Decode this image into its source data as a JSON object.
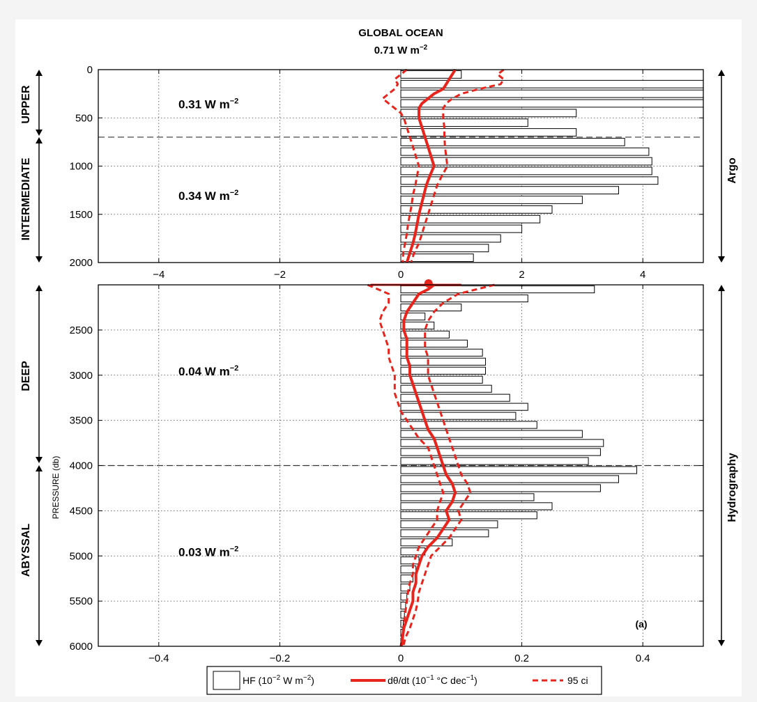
{
  "figure": {
    "title": "GLOBAL OCEAN",
    "subtitle_value": "0.71 W m",
    "subtitle_exp": "−2",
    "panel_label": "(a)",
    "ylabel": "PRESSURE (db)",
    "right_labels": [
      "Argo",
      "Hydrography"
    ],
    "left_labels": [
      "UPPER",
      "INTERMEDIATE",
      "DEEP",
      "ABYSSAL"
    ]
  },
  "legend": {
    "hf_label": "HF (10",
    "hf_exp": "−2",
    "hf_unit": " W m",
    "hf_unit_exp": "−2",
    "hf_close": ")",
    "dt_label": "dθ/dt (10",
    "dt_exp": "−1",
    "dt_unit": " °C dec",
    "dt_unit_exp": "−1",
    "dt_close": ")",
    "ci_label": "95 ci"
  },
  "chart_data": [
    {
      "type": "bar",
      "panel": "top",
      "orientation": "horizontal",
      "xlim": [
        -5,
        5
      ],
      "ylim": [
        2000,
        0
      ],
      "xticks": [
        -4,
        -2,
        0,
        2,
        4
      ],
      "yticks": [
        0,
        500,
        1000,
        1500,
        2000
      ],
      "grid": true,
      "divider_pressure": 700,
      "layer_annotations": [
        {
          "pressure": 400,
          "value": "0.31 W m",
          "exp": "−2"
        },
        {
          "pressure": 1350,
          "value": "0.34 W m",
          "exp": "−2"
        }
      ],
      "hf_bars": {
        "name": "HF (10−2 W m−2)",
        "bin_width_db": 100,
        "pressure": [
          50,
          150,
          250,
          350,
          450,
          550,
          650,
          750,
          850,
          950,
          1050,
          1150,
          1250,
          1350,
          1450,
          1550,
          1650,
          1750,
          1850,
          1950
        ],
        "values": [
          1.0,
          5.0,
          5.0,
          5.0,
          2.9,
          2.1,
          2.9,
          3.7,
          4.1,
          4.15,
          4.15,
          4.25,
          3.6,
          3.0,
          2.5,
          2.3,
          2.0,
          1.65,
          1.45,
          1.2
        ]
      },
      "dtheta_dt": {
        "name": "dθ/dt (10−1 °C dec−1)",
        "pressure": [
          0,
          50,
          100,
          150,
          200,
          250,
          300,
          350,
          400,
          450,
          500,
          600,
          700,
          800,
          900,
          1000,
          1100,
          1200,
          1300,
          1400,
          1500,
          1600,
          1700,
          1800,
          1900,
          2000
        ],
        "values": [
          0.9,
          0.85,
          0.8,
          0.75,
          0.7,
          0.55,
          0.45,
          0.35,
          0.3,
          0.3,
          0.3,
          0.35,
          0.4,
          0.45,
          0.5,
          0.55,
          0.48,
          0.42,
          0.38,
          0.34,
          0.3,
          0.27,
          0.24,
          0.2,
          0.15,
          0.1
        ]
      },
      "ci_lower": {
        "name": "95 ci",
        "pressure": [
          0,
          50,
          100,
          150,
          200,
          250,
          300,
          350,
          400,
          450,
          500,
          600,
          700,
          800,
          900,
          1000,
          1100,
          1200,
          1300,
          1400,
          1500,
          1600,
          1700,
          1800,
          1900,
          2000
        ],
        "values": [
          0.1,
          0.0,
          -0.1,
          -0.05,
          -0.1,
          -0.2,
          -0.3,
          -0.2,
          -0.1,
          0.0,
          0.05,
          0.1,
          0.15,
          0.2,
          0.25,
          0.3,
          0.27,
          0.24,
          0.2,
          0.18,
          0.15,
          0.12,
          0.1,
          0.07,
          0.04,
          0.03
        ]
      },
      "ci_upper": {
        "name": "95 ci",
        "pressure": [
          0,
          50,
          100,
          150,
          200,
          250,
          300,
          350,
          400,
          450,
          500,
          600,
          700,
          800,
          900,
          1000,
          1100,
          1200,
          1300,
          1400,
          1500,
          1600,
          1700,
          1800,
          1900,
          2000
        ],
        "values": [
          1.7,
          1.6,
          1.7,
          1.65,
          1.3,
          1.0,
          0.85,
          0.75,
          0.7,
          0.7,
          0.7,
          0.72,
          0.72,
          0.73,
          0.75,
          0.77,
          0.68,
          0.6,
          0.55,
          0.5,
          0.45,
          0.4,
          0.35,
          0.3,
          0.22,
          0.17
        ]
      }
    },
    {
      "type": "bar",
      "panel": "bottom",
      "orientation": "horizontal",
      "xlim": [
        -0.5,
        0.5
      ],
      "ylim": [
        6000,
        2000
      ],
      "xticks": [
        -0.4,
        -0.2,
        0,
        0.2,
        0.4
      ],
      "yticks": [
        2500,
        3000,
        3500,
        4000,
        4500,
        5000,
        5500,
        6000
      ],
      "grid": true,
      "divider_pressure": 4000,
      "layer_annotations": [
        {
          "pressure": 3000,
          "value": "0.04 W m",
          "exp": "−2"
        },
        {
          "pressure": 5000,
          "value": "0.03 W m",
          "exp": "−2"
        }
      ],
      "hf_bars": {
        "name": "HF (10−2 W m−2)",
        "bin_width_db": 100,
        "pressure": [
          2050,
          2150,
          2250,
          2350,
          2450,
          2550,
          2650,
          2750,
          2850,
          2950,
          3050,
          3150,
          3250,
          3350,
          3450,
          3550,
          3650,
          3750,
          3850,
          3950,
          4050,
          4150,
          4250,
          4350,
          4450,
          4550,
          4650,
          4750,
          4850,
          4950,
          5050,
          5150,
          5250,
          5350,
          5450,
          5550,
          5650,
          5750,
          5850,
          5950
        ],
        "values": [
          0.32,
          0.21,
          0.1,
          0.04,
          0.055,
          0.08,
          0.11,
          0.135,
          0.14,
          0.14,
          0.135,
          0.15,
          0.18,
          0.21,
          0.19,
          0.225,
          0.3,
          0.335,
          0.33,
          0.31,
          0.39,
          0.36,
          0.33,
          0.22,
          0.25,
          0.225,
          0.16,
          0.145,
          0.085,
          0.04,
          0.03,
          0.025,
          0.02,
          0.015,
          0.01,
          0.008,
          0.006,
          0.004,
          0.003,
          0.002
        ]
      },
      "dtheta_dt": {
        "name": "dθ/dt (10−1 °C dec−1)",
        "pressure": [
          2000,
          2050,
          2100,
          2200,
          2300,
          2400,
          2500,
          2600,
          2700,
          2800,
          2900,
          3000,
          3100,
          3200,
          3300,
          3400,
          3500,
          3600,
          3700,
          3800,
          3900,
          4000,
          4100,
          4200,
          4300,
          4400,
          4500,
          4600,
          4700,
          4800,
          4900,
          5000,
          5100,
          5200,
          5300,
          5400,
          5500,
          5600,
          5700,
          5800,
          5900,
          6000
        ],
        "values": [
          0.055,
          0.045,
          0.03,
          0.02,
          0.01,
          0.005,
          0.005,
          0.01,
          0.01,
          0.01,
          0.015,
          0.015,
          0.02,
          0.025,
          0.03,
          0.035,
          0.04,
          0.045,
          0.055,
          0.06,
          0.065,
          0.07,
          0.075,
          0.085,
          0.09,
          0.085,
          0.075,
          0.08,
          0.07,
          0.06,
          0.045,
          0.035,
          0.03,
          0.025,
          0.025,
          0.02,
          0.02,
          0.015,
          0.01,
          0.005,
          0.003,
          0.001
        ]
      },
      "ci_lower": {
        "name": "95 ci",
        "pressure": [
          2000,
          2100,
          2200,
          2300,
          2400,
          2500,
          2600,
          2700,
          2800,
          2900,
          3000,
          3100,
          3200,
          3300,
          3400,
          3500,
          3600,
          3700,
          3800,
          3900,
          4000,
          4100,
          4200,
          4300,
          4400,
          4500,
          4600,
          4700,
          4800,
          4900,
          5000,
          5100,
          5200,
          5300,
          5400,
          5500,
          5600,
          5700,
          5800,
          5900,
          6000
        ],
        "values": [
          -0.055,
          -0.02,
          -0.02,
          -0.03,
          -0.035,
          -0.03,
          -0.025,
          -0.02,
          -0.02,
          -0.015,
          -0.01,
          -0.01,
          -0.01,
          -0.005,
          0.0,
          0.01,
          0.02,
          0.03,
          0.045,
          0.05,
          0.055,
          0.06,
          0.065,
          0.07,
          0.065,
          0.06,
          0.06,
          0.05,
          0.04,
          0.03,
          0.025,
          0.02,
          0.02,
          0.015,
          0.012,
          0.01,
          0.008,
          0.006,
          0.004,
          0.002,
          0.0
        ]
      },
      "ci_upper": {
        "name": "95 ci",
        "pressure": [
          2000,
          2100,
          2200,
          2300,
          2400,
          2500,
          2600,
          2700,
          2800,
          2900,
          3000,
          3100,
          3200,
          3300,
          3400,
          3500,
          3600,
          3700,
          3800,
          3900,
          4000,
          4100,
          4200,
          4300,
          4400,
          4500,
          4600,
          4700,
          4800,
          4900,
          5000,
          5100,
          5200,
          5300,
          5400,
          5500,
          5600,
          5700,
          5800,
          5900,
          6000
        ],
        "values": [
          0.155,
          0.095,
          0.07,
          0.055,
          0.045,
          0.04,
          0.04,
          0.04,
          0.045,
          0.045,
          0.045,
          0.05,
          0.055,
          0.06,
          0.065,
          0.07,
          0.075,
          0.08,
          0.085,
          0.09,
          0.095,
          0.1,
          0.11,
          0.115,
          0.105,
          0.095,
          0.1,
          0.09,
          0.08,
          0.065,
          0.05,
          0.045,
          0.04,
          0.035,
          0.03,
          0.028,
          0.025,
          0.02,
          0.015,
          0.008,
          0.004
        ]
      }
    }
  ]
}
